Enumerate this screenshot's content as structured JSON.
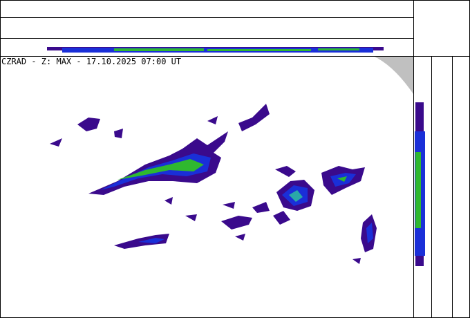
{
  "header": {
    "title": "CZRAD - Z: MAX - 17.10.2025 07:00 UT"
  }
}
